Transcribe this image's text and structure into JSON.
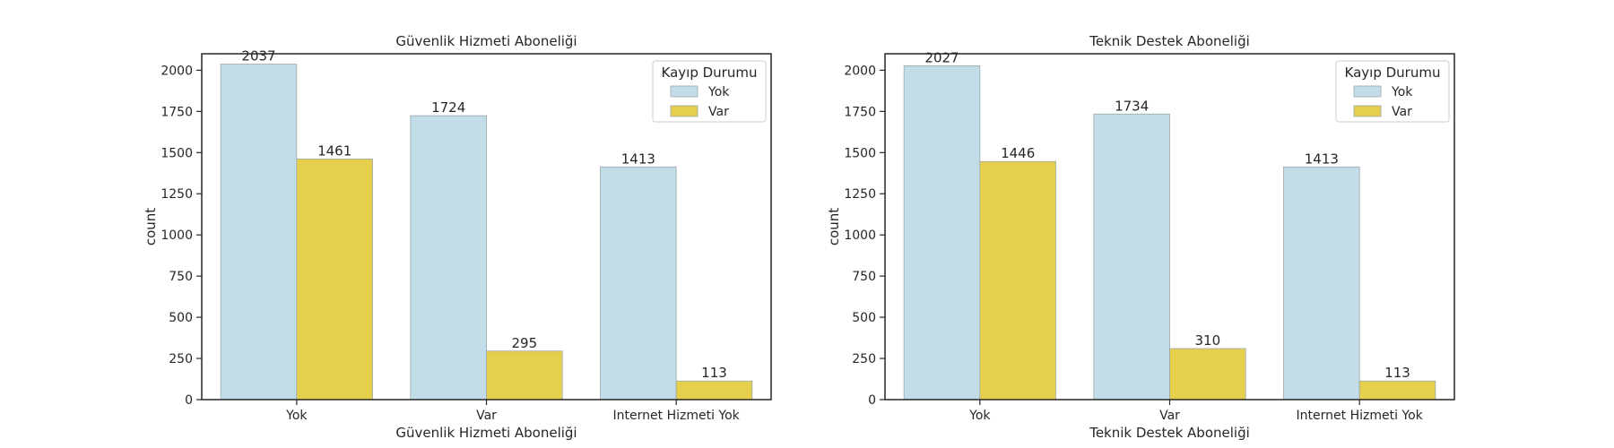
{
  "chart_data": [
    {
      "type": "bar",
      "title": "Güvenlik Hizmeti Aboneliği",
      "xlabel": "Güvenlik Hizmeti Aboneliği",
      "ylabel": "count",
      "categories": [
        "Yok",
        "Var",
        "Internet Hizmeti Yok"
      ],
      "series": [
        {
          "name": "Yok",
          "values": [
            2037,
            1724,
            1413
          ]
        },
        {
          "name": "Var",
          "values": [
            1461,
            295,
            113
          ]
        }
      ],
      "ylim": [
        0,
        2100
      ],
      "yticks": [
        0,
        250,
        500,
        750,
        1000,
        1250,
        1500,
        1750,
        2000
      ],
      "legend_title": "Kayıp Durumu",
      "legend_position": "top-right",
      "grid": false
    },
    {
      "type": "bar",
      "title": "Teknik Destek Aboneliği",
      "xlabel": "Teknik Destek Aboneliği",
      "ylabel": "count",
      "categories": [
        "Yok",
        "Var",
        "Internet Hizmeti Yok"
      ],
      "series": [
        {
          "name": "Yok",
          "values": [
            2027,
            1734,
            1413
          ]
        },
        {
          "name": "Var",
          "values": [
            1446,
            310,
            113
          ]
        }
      ],
      "ylim": [
        0,
        2100
      ],
      "yticks": [
        0,
        250,
        500,
        750,
        1000,
        1250,
        1500,
        1750,
        2000
      ],
      "legend_title": "Kayıp Durumu",
      "legend_position": "top-right",
      "grid": false
    }
  ],
  "colors": {
    "series_0": "#c2dde8",
    "series_1": "#e5cf4c",
    "bar_edge": "#9aa7ad",
    "axis": "#262626"
  }
}
